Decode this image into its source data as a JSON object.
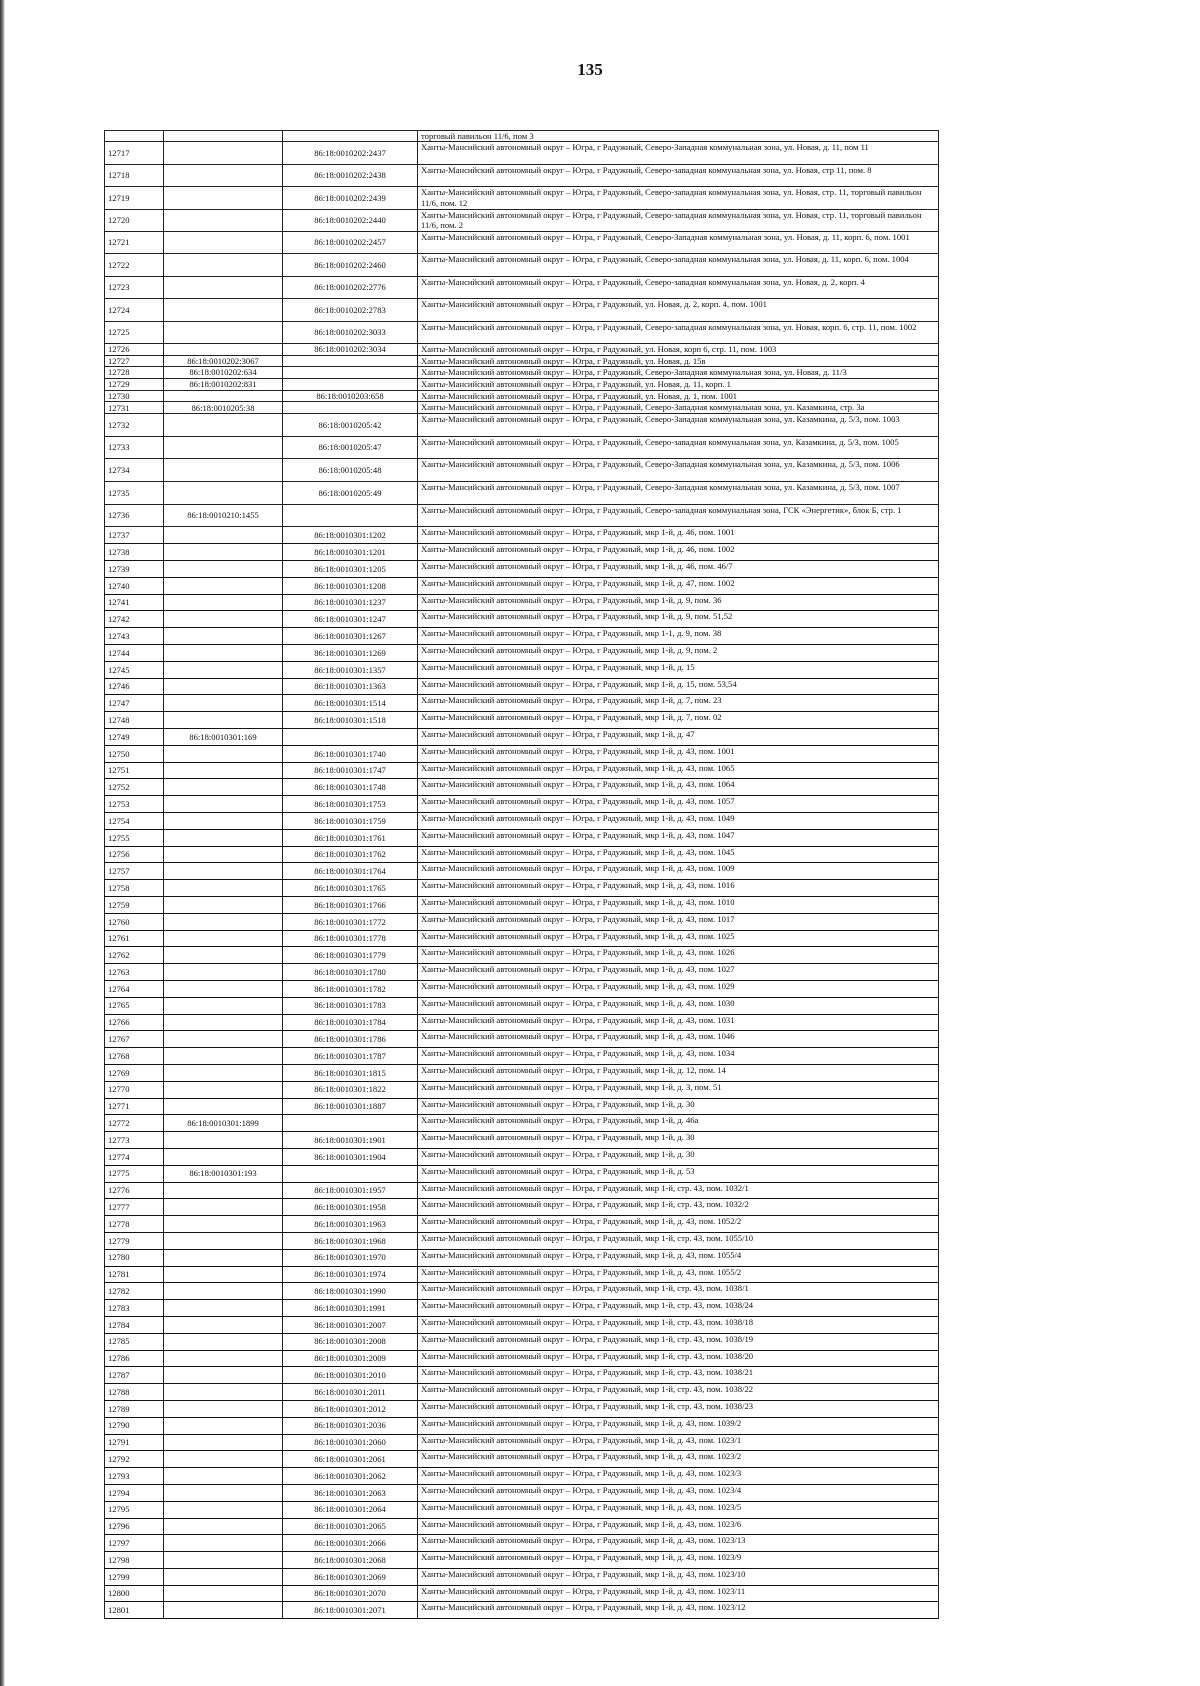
{
  "page": {
    "number": "135"
  },
  "table": {
    "rows": [
      [
        "",
        "",
        "",
        "торговый павильон 11/6, пом 3"
      ],
      [
        "12717",
        "",
        "86:18:0010202:2437",
        "Ханты-Мансийский автономный округ – Югра, г Радужный, Северо-Западная коммунальная зона, ул. Новая, д. 11, пом 11"
      ],
      [
        "12718",
        "",
        "86:18:0010202:2438",
        "Ханты-Мансийский автономный округ – Югра, г Радужный, Северо-западная коммунальная зона, ул. Новая, стр 11, пом. 8"
      ],
      [
        "12719",
        "",
        "86:18:0010202:2439",
        "Ханты-Мансийский автономный округ – Югра, г Радужный, Северо-западная коммунальная зона, ул. Новая, стр. 11, торговый павильон 11/6, пом. 12"
      ],
      [
        "12720",
        "",
        "86:18:0010202:2440",
        "Ханты-Мансийский автономный округ – Югра, г Радужный, Северо-западная коммунальная зона, ул. Новая, стр. 11, торговый павильон 11/6, пом. 2"
      ],
      [
        "12721",
        "",
        "86:18:0010202:2457",
        "Ханты-Мансийский автономный округ – Югра, г Радужный, Северо-Западная коммунальная зона, ул. Новая, д. 11, корп. 6, пом. 1001"
      ],
      [
        "12722",
        "",
        "86:18:0010202:2460",
        "Ханты-Мансийский автономный округ – Югра, г Радужный, Северо-западная коммунальная зона, ул. Новая, д. 11, корп. 6, пом. 1004"
      ],
      [
        "12723",
        "",
        "86:18:0010202:2776",
        "Ханты-Мансийский автономный округ – Югра, г Радужный, Северо-западная коммунальная зона, ул. Новая, д. 2, корп. 4"
      ],
      [
        "12724",
        "",
        "86:18:0010202:2783",
        "Ханты-Мансийский автономный округ – Югра, г Радужный, ул. Новая, д. 2, корп. 4, пом. 1001"
      ],
      [
        "12725",
        "",
        "86:18:0010202:3033",
        "Ханты-Мансийский автономный округ – Югра, г Радужный, Северо-западная коммунальная зона, ул. Новая, корп. 6, стр. 11, пом. 1002"
      ],
      [
        "12726",
        "",
        "86:18:0010202:3034",
        "Ханты-Мансийский автономный округ – Югра, г Радужный, ул. Новая, корп 6, стр. 11, пом. 1003"
      ],
      [
        "12727",
        "86:18:0010202:3067",
        "",
        "Ханты-Мансийский автономный округ – Югра, г Радужный, ул. Новая, д. 15в"
      ],
      [
        "12728",
        "86:18:0010202:634",
        "",
        "Ханты-Мансийский автономный округ – Югра, г Радужный, Северо-Западная коммунальная зона, ул. Новая, д. 11/3"
      ],
      [
        "12729",
        "86:18:0010202:831",
        "",
        "Ханты-Мансийский автономный округ – Югра, г Радужный, ул. Новая, д. 11, корп. 1"
      ],
      [
        "12730",
        "",
        "86:18:0010203:658",
        "Ханты-Мансийский автономный округ – Югра, г Радужный, ул. Новая, д. 1, пом. 1001"
      ],
      [
        "12731",
        "86:18:0010205:38",
        "",
        "Ханты-Мансийский автономный округ – Югра, г Радужный, Северо-Западная коммунальная зона, ул. Казамкина, стр. 3а"
      ],
      [
        "12732",
        "",
        "86:18:0010205:42",
        "Ханты-Мансийский автономный округ – Югра, г Радужный, Северо-Западная коммунальная зона, ул. Казамкина, д. 5/3, пом. 1003"
      ],
      [
        "12733",
        "",
        "86:18:0010205:47",
        "Ханты-Мансийский автономный округ – Югра, г Радужный, Северо-западная коммунальная зона, ул. Казамкина, д. 5/3, пом. 1005"
      ],
      [
        "12734",
        "",
        "86:18:0010205:48",
        "Ханты-Мансийский автономный округ – Югра, г Радужный, Северо-Западная коммунальная зона, ул. Казамкина, д. 5/3, пом. 1006"
      ],
      [
        "12735",
        "",
        "86:18:0010205:49",
        "Ханты-Мансийский автономный округ – Югра, г Радужный, Северо-Западная коммунальная зона, ул. Казамкина, д. 5/3, пом. 1007"
      ],
      [
        "12736",
        "86:18:0010210:1455",
        "",
        "Ханты-Мансийский автономный округ – Югра, г Радужный, Северо-западная коммунальная зона, ГСК «Энергетик», блок Б, стр. 1"
      ],
      [
        "12737",
        "",
        "86:18:0010301:1202",
        "Ханты-Мансийский автономный округ – Югра, г Радужный, мкр 1-й, д. 46, пом. 1001"
      ],
      [
        "12738",
        "",
        "86:18:0010301:1201",
        "Ханты-Мансийский автономный округ – Югра, г Радужный, мкр 1-й, д. 46, пом. 1002"
      ],
      [
        "12739",
        "",
        "86:18:0010301:1205",
        "Ханты-Мансийский автономный округ – Югра, г Радужный, мкр 1-й, д. 46, пом. 46/7"
      ],
      [
        "12740",
        "",
        "86:18:0010301:1208",
        "Ханты-Мансийский автономный округ – Югра, г Радужный, мкр 1-й, д. 47, пом. 1002"
      ],
      [
        "12741",
        "",
        "86:18:0010301:1237",
        "Ханты-Мансийский автономный округ – Югра, г Радужный, мкр 1-й, д. 9, пом. 36"
      ],
      [
        "12742",
        "",
        "86:18:0010301:1247",
        "Ханты-Мансийский автономный округ – Югра, г Радужный, мкр 1-й, д. 9, пом. 51,52"
      ],
      [
        "12743",
        "",
        "86:18:0010301:1267",
        "Ханты-Мансийский автономный округ – Югра, г Радужный, мкр 1-1, д. 9, пом. 38"
      ],
      [
        "12744",
        "",
        "86:18:0010301:1269",
        "Ханты-Мансийский автономный округ – Югра, г Радужный, мкр 1-й, д. 9, пом. 2"
      ],
      [
        "12745",
        "",
        "86:18:0010301:1357",
        "Ханты-Мансийский автономный округ – Югра, г Радужный, мкр 1-й, д. 15"
      ],
      [
        "12746",
        "",
        "86:18:0010301:1363",
        "Ханты-Мансийский автономный округ – Югра, г Радужный, мкр 1-й, д. 15, пом. 53,54"
      ],
      [
        "12747",
        "",
        "86:18:0010301:1514",
        "Ханты-Мансийский автономный округ – Югра, г Радужный, мкр 1-й, д. 7, пом. 23"
      ],
      [
        "12748",
        "",
        "86:18:0010301:1518",
        "Ханты-Мансийский автономный округ – Югра, г Радужный, мкр 1-й, д. 7, пом. 02"
      ],
      [
        "12749",
        "86:18:0010301:169",
        "",
        "Ханты-Мансийский автономный округ – Югра, г Радужный, мкр 1-й, д. 47"
      ],
      [
        "12750",
        "",
        "86:18:0010301:1740",
        "Ханты-Мансийский автономный округ – Югра, г Радужный, мкр 1-й, д. 43, пом. 1001"
      ],
      [
        "12751",
        "",
        "86:18:0010301:1747",
        "Ханты-Мансийский автономный округ – Югра, г Радужный, мкр 1-й, д. 43, пом. 1065"
      ],
      [
        "12752",
        "",
        "86:18:0010301:1748",
        "Ханты-Мансийский автономный округ – Югра, г Радужный, мкр 1-й, д. 43, пом. 1064"
      ],
      [
        "12753",
        "",
        "86:18:0010301:1753",
        "Ханты-Мансийский автономный округ – Югра, г Радужный, мкр 1-й, д. 43, пом. 1057"
      ],
      [
        "12754",
        "",
        "86:18:0010301:1759",
        "Ханты-Мансийский автономный округ – Югра, г Радужный, мкр 1-й, д. 43, пом. 1049"
      ],
      [
        "12755",
        "",
        "86:18:0010301:1761",
        "Ханты-Мансийский автономный округ – Югра, г Радужный, мкр 1-й, д. 43, пом. 1047"
      ],
      [
        "12756",
        "",
        "86:18:0010301:1762",
        "Ханты-Мансийский автономный округ – Югра, г Радужный, мкр 1-й, д. 43, пом. 1045"
      ],
      [
        "12757",
        "",
        "86:18:0010301:1764",
        "Ханты-Мансийский автономный округ – Югра, г Радужный, мкр 1-й, д. 43, пом. 1009"
      ],
      [
        "12758",
        "",
        "86:18:0010301:1765",
        "Ханты-Мансийский автономный округ – Югра, г Радужный, мкр 1-й, д. 43, пом. 1016"
      ],
      [
        "12759",
        "",
        "86:18:0010301:1766",
        "Ханты-Мансийский автономный округ – Югра, г Радужный, мкр 1-й, д. 43, пом. 1010"
      ],
      [
        "12760",
        "",
        "86:18:0010301:1772",
        "Ханты-Мансийский автономный округ – Югра, г Радужный, мкр 1-й, д. 43, пом. 1017"
      ],
      [
        "12761",
        "",
        "86:18:0010301:1778",
        "Ханты-Мансийский автономный округ – Югра, г Радужный, мкр 1-й, д. 43, пом. 1025"
      ],
      [
        "12762",
        "",
        "86:18:0010301:1779",
        "Ханты-Мансийский автономный округ – Югра, г Радужный, мкр 1-й, д. 43, пом. 1026"
      ],
      [
        "12763",
        "",
        "86:18:0010301:1780",
        "Ханты-Мансийский автономный округ – Югра, г Радужный, мкр 1-й, д. 43, пом. 1027"
      ],
      [
        "12764",
        "",
        "86:18:0010301:1782",
        "Ханты-Мансийский автономный округ – Югра, г Радужный, мкр 1-й, д. 43, пом. 1029"
      ],
      [
        "12765",
        "",
        "86:18:0010301:1783",
        "Ханты-Мансийский автономный округ – Югра, г Радужный, мкр 1-й, д. 43, пом. 1030"
      ],
      [
        "12766",
        "",
        "86:18:0010301:1784",
        "Ханты-Мансийский автономный округ – Югра, г Радужный, мкр 1-й, д. 43, пом. 1031"
      ],
      [
        "12767",
        "",
        "86:18:0010301:1786",
        "Ханты-Мансийский автономный округ – Югра, г Радужный, мкр 1-й, д. 43, пом. 1046"
      ],
      [
        "12768",
        "",
        "86:18:0010301:1787",
        "Ханты-Мансийский автономный округ – Югра, г Радужный, мкр 1-й, д. 43, пом. 1034"
      ],
      [
        "12769",
        "",
        "86:18:0010301:1815",
        "Ханты-Мансийский автономный округ – Югра, г Радужный, мкр 1-й, д. 12, пом. 14"
      ],
      [
        "12770",
        "",
        "86:18:0010301:1822",
        "Ханты-Мансийский автономный округ – Югра, г Радужный, мкр 1-й, д. 3, пом. 51"
      ],
      [
        "12771",
        "",
        "86:18:0010301:1887",
        "Ханты-Мансийский автономный округ – Югра, г Радужный, мкр 1-й, д. 30"
      ],
      [
        "12772",
        "86:18:0010301:1899",
        "",
        "Ханты-Мансийский автономный округ – Югра, г Радужный, мкр 1-й, д. 46а"
      ],
      [
        "12773",
        "",
        "86:18:0010301:1901",
        "Ханты-Мансийский автономный округ – Югра, г Радужный, мкр 1-й, д. 30"
      ],
      [
        "12774",
        "",
        "86:18:0010301:1904",
        "Ханты-Мансийский автономный округ – Югра, г Радужный, мкр 1-й, д. 30"
      ],
      [
        "12775",
        "86:18:0010301:193",
        "",
        "Ханты-Мансийский автономный округ – Югра, г Радужный, мкр 1-й, д. 53"
      ],
      [
        "12776",
        "",
        "86:18:0010301:1957",
        "Ханты-Мансийский автономный округ – Югра, г Радужный, мкр 1-й, стр. 43, пом. 1032/1"
      ],
      [
        "12777",
        "",
        "86:18:0010301:1958",
        "Ханты-Мансийский автономный округ – Югра, г Радужный, мкр 1-й, стр. 43, пом. 1032/2"
      ],
      [
        "12778",
        "",
        "86:18:0010301:1963",
        "Ханты-Мансийский автономный округ – Югра, г Радужный, мкр 1-й, д. 43, пом. 1052/2"
      ],
      [
        "12779",
        "",
        "86:18:0010301:1968",
        "Ханты-Мансийский автономный округ – Югра, г Радужный, мкр 1-й, стр. 43, пом. 1055/10"
      ],
      [
        "12780",
        "",
        "86:18:0010301:1970",
        "Ханты-Мансийский автономный округ – Югра, г Радужный, мкр 1-й, д. 43, пом. 1055/4"
      ],
      [
        "12781",
        "",
        "86:18:0010301:1974",
        "Ханты-Мансийский автономный округ – Югра, г Радужный, мкр 1-й, д. 43, пом. 1055/2"
      ],
      [
        "12782",
        "",
        "86:18:0010301:1990",
        "Ханты-Мансийский автономный округ – Югра, г Радужный, мкр 1-й, стр. 43, пом. 1038/1"
      ],
      [
        "12783",
        "",
        "86:18:0010301:1991",
        "Ханты-Мансийский автономный округ – Югра, г Радужный, мкр 1-й, стр. 43, пом. 1038/24"
      ],
      [
        "12784",
        "",
        "86:18:0010301:2007",
        "Ханты-Мансийский автономный округ – Югра, г Радужный, мкр 1-й, стр. 43, пом. 1038/18"
      ],
      [
        "12785",
        "",
        "86:18:0010301:2008",
        "Ханты-Мансийский автономный округ – Югра, г Радужный, мкр 1-й, стр. 43, пом. 1038/19"
      ],
      [
        "12786",
        "",
        "86:18:0010301:2009",
        "Ханты-Мансийский автономный округ – Югра, г Радужный, мкр 1-й, стр. 43, пом. 1038/20"
      ],
      [
        "12787",
        "",
        "86:18:0010301:2010",
        "Ханты-Мансийский автономный округ – Югра, г Радужный, мкр 1-й, стр. 43, пом. 1038/21"
      ],
      [
        "12788",
        "",
        "86:18:0010301:2011",
        "Ханты-Мансийский автономный округ – Югра, г Радужный, мкр 1-й, стр. 43, пом. 1038/22"
      ],
      [
        "12789",
        "",
        "86:18:0010301:2012",
        "Ханты-Мансийский автономный округ – Югра, г Радужный, мкр 1-й, стр. 43, пом. 1038/23"
      ],
      [
        "12790",
        "",
        "86:18:0010301:2036",
        "Ханты-Мансийский автономный округ – Югра, г Радужный, мкр 1-й, д. 43, пом. 1039/2"
      ],
      [
        "12791",
        "",
        "86:18:0010301:2060",
        "Ханты-Мансийский автономный округ – Югра, г Радужный, мкр 1-й, д. 43, пом. 1023/1"
      ],
      [
        "12792",
        "",
        "86:18:0010301:2061",
        "Ханты-Мансийский автономный округ – Югра, г Радужный, мкр 1-й, д. 43, пом. 1023/2"
      ],
      [
        "12793",
        "",
        "86:18:0010301:2062",
        "Ханты-Мансийский автономный округ – Югра, г Радужный, мкр 1-й, д. 43, пом. 1023/3"
      ],
      [
        "12794",
        "",
        "86:18:0010301:2063",
        "Ханты-Мансийский автономный округ – Югра, г Радужный, мкр 1-й, д. 43, пом. 1023/4"
      ],
      [
        "12795",
        "",
        "86:18:0010301:2064",
        "Ханты-Мансийский автономный округ – Югра, г Радужный, мкр 1-й, д. 43, пом. 1023/5"
      ],
      [
        "12796",
        "",
        "86:18:0010301:2065",
        "Ханты-Мансийский автономный округ – Югра, г Радужный, мкр 1-й, д. 43, пом. 1023/6"
      ],
      [
        "12797",
        "",
        "86:18:0010301:2066",
        "Ханты-Мансийский автономный округ – Югра, г Радужный, мкр 1-й, д. 43, пом. 1023/13"
      ],
      [
        "12798",
        "",
        "86:18:0010301:2068",
        "Ханты-Мансийский автономный округ – Югра, г Радужный, мкр 1-й, д. 43, пом. 1023/9"
      ],
      [
        "12799",
        "",
        "86:18:0010301:2069",
        "Ханты-Мансийский автономный округ – Югра, г Радужный, мкр 1-й, д. 43, пом. 1023/10"
      ],
      [
        "12800",
        "",
        "86:18:0010301:2070",
        "Ханты-Мансийский автономный округ – Югра, г Радужный, мкр 1-й, д. 43, пом. 1023/11"
      ],
      [
        "12801",
        "",
        "86:18:0010301:2071",
        "Ханты-Мансийский автономный округ – Югра, г Радужный, мкр 1-й, д. 43, пом. 1023/12"
      ]
    ]
  }
}
